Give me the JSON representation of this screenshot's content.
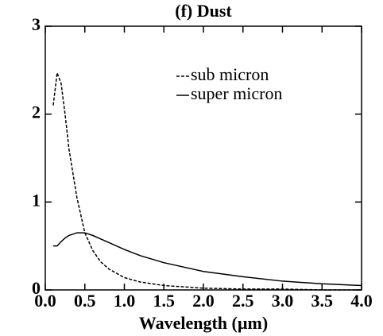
{
  "chart_data": {
    "type": "line",
    "title": "(f) Dust",
    "x_label": "Wavelength (µm)",
    "x": [
      0.1,
      0.15,
      0.2,
      0.25,
      0.3,
      0.4,
      0.5,
      0.6,
      0.7,
      0.8,
      1.0,
      1.2,
      1.5,
      2.0,
      2.5,
      3.0,
      3.5,
      4.0
    ],
    "series": [
      {
        "name": "sub micron",
        "color": "#000000",
        "dash": true,
        "values": [
          2.1,
          2.47,
          2.35,
          2.0,
          1.6,
          1.05,
          0.65,
          0.45,
          0.32,
          0.24,
          0.14,
          0.09,
          0.05,
          0.02,
          0.01,
          0.01,
          0.0,
          0.0
        ]
      },
      {
        "name": "super micron",
        "color": "#000000",
        "dash": false,
        "values": [
          0.5,
          0.5,
          0.55,
          0.59,
          0.62,
          0.65,
          0.65,
          0.62,
          0.58,
          0.54,
          0.46,
          0.39,
          0.31,
          0.21,
          0.15,
          0.1,
          0.07,
          0.05
        ]
      }
    ],
    "xlim": [
      0,
      4.0
    ],
    "xticks": [
      {
        "value": 0,
        "label": "0.0"
      },
      0.5,
      {
        "value": 1,
        "label": "1.0"
      },
      1.5,
      {
        "value": 2,
        "label": "2.0"
      },
      2.5,
      {
        "value": 3,
        "label": "3.0"
      },
      3.5,
      {
        "value": 4,
        "label": "4.0"
      }
    ],
    "ylim": [
      0,
      3
    ],
    "yticks": [
      0,
      1,
      2,
      3
    ],
    "legend": "upper right"
  }
}
